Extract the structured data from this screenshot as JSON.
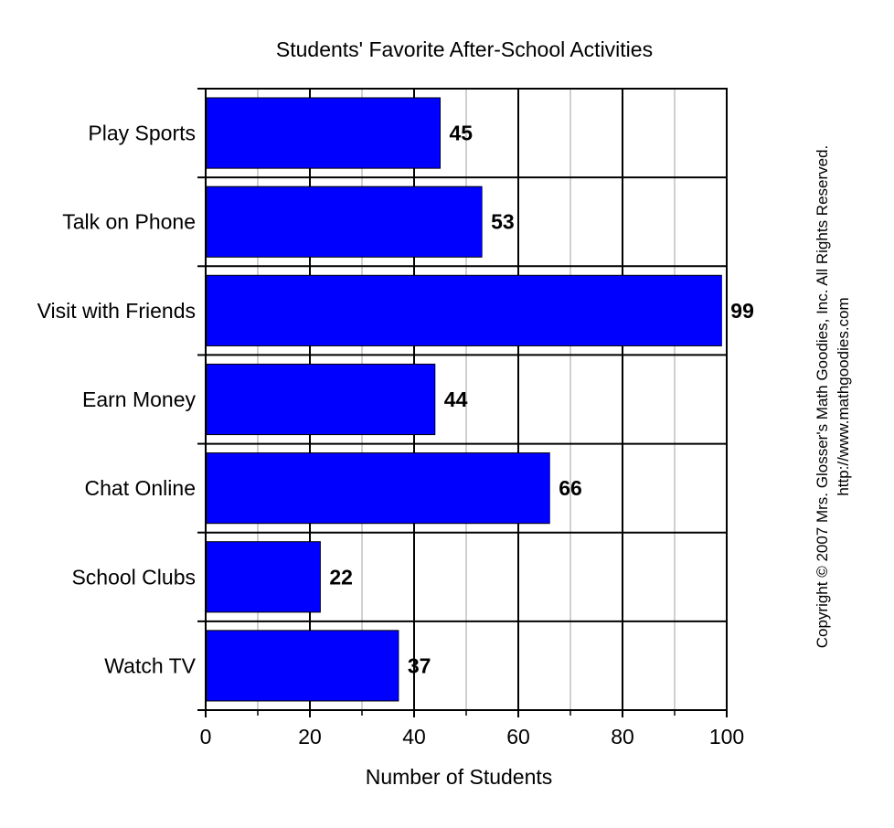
{
  "chart_data": {
    "type": "bar",
    "orientation": "horizontal",
    "title": "Students' Favorite After-School Activities",
    "categories": [
      "Play Sports",
      "Talk on Phone",
      "Visit with Friends",
      "Earn Money",
      "Chat Online",
      "School Clubs",
      "Watch TV"
    ],
    "values": [
      45,
      53,
      99,
      44,
      66,
      22,
      37
    ],
    "xlabel": "Number of Students",
    "ylabel": "",
    "xlim": [
      0,
      100
    ],
    "major_ticks": [
      0,
      20,
      40,
      60,
      80,
      100
    ],
    "minor_gridlines": [
      10,
      30,
      50,
      70,
      90
    ],
    "grid": true,
    "data_labels": true,
    "bar_color": "#0000ff"
  },
  "copyright": {
    "line1": "Copyright © 2007 Mrs. Glosser's Math Goodies, Inc. All Rights Reserved.",
    "line2": "http://www.mathgoodies.com"
  }
}
